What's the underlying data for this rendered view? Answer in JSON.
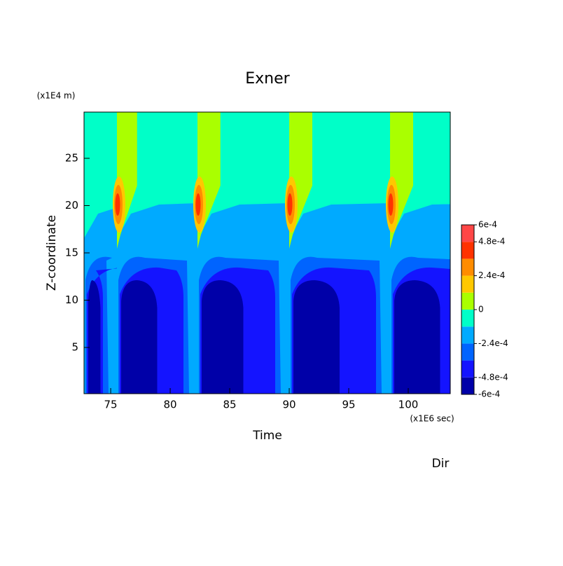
{
  "chart_data": {
    "type": "contour",
    "title": "Exner",
    "y_unit": "(x1E4 m)",
    "ylabel": "Z-coordinate",
    "xlabel": "Time",
    "x_unit": "(x1E6 sec)",
    "extra_label": "Dir",
    "xlim": [
      72.76,
      103.53
    ],
    "xticks": [
      75,
      80,
      85,
      90,
      95,
      100
    ],
    "ylim": [
      0.11,
      29.89
    ],
    "yticks": [
      5,
      10,
      15,
      20,
      25
    ],
    "levels": [
      -0.0006,
      -0.00048,
      -0.00036,
      -0.00024,
      -0.00012,
      0,
      0.00012,
      0.00024,
      0.00036,
      0.00048,
      0.0006
    ],
    "colors": [
      "#0000a8",
      "#1414ff",
      "#0064ff",
      "#00aaff",
      "#00ffc8",
      "#aaff00",
      "#ffc800",
      "#ff8c00",
      "#ff3200",
      "#ff4646"
    ],
    "colorbar_ticks": [
      {
        "value": 0.0006,
        "label": "6e-4"
      },
      {
        "value": 0.00048,
        "label": "4.8e-4"
      },
      {
        "value": 0.00024,
        "label": "2.4e-4"
      },
      0,
      {
        "value": -0.00024,
        "label": "-2.4e-4"
      },
      {
        "value": -0.00048,
        "label": "-4.8e-4"
      },
      {
        "value": -0.0006,
        "label": "-6e-4"
      }
    ]
  }
}
